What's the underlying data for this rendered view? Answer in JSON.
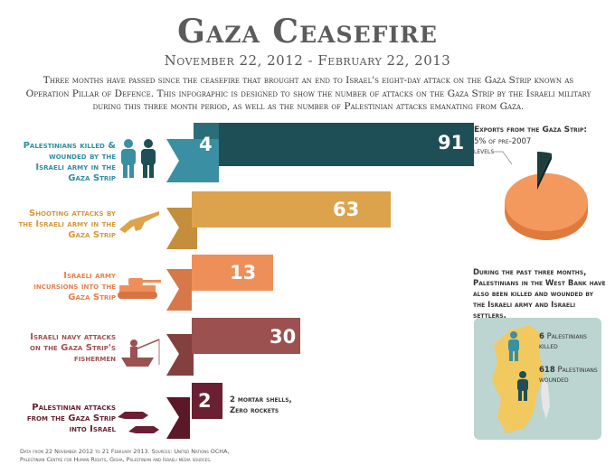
{
  "header": {
    "title": "Gaza Ceasefire",
    "dates": "November 22, 2012 - February 22, 2013",
    "intro": "Three months have passed since the ceasefire that brought an end to Israel's eight-day attack on the Gaza Strip known as Operation Pillar of Defence. This infographic is designed to show the number of attacks on the Gaza Strip by the Israeli military during this three month period, as well as the number of Palestinian attacks emanating from Gaza."
  },
  "rows": [
    {
      "label": "Palestinians killed & wounded by the Israeli army in the Gaza Strip",
      "values": [
        "4",
        "91"
      ],
      "color": "#3a8fa3",
      "dark": "#1e4f56",
      "icon": "people-icon"
    },
    {
      "label": "Shooting attacks by the Israeli army in the Gaza Strip",
      "values": [
        "63"
      ],
      "color": "#dca34c",
      "icon": "rifle-icon"
    },
    {
      "label": "Israeli army incursions into the Gaza Strip",
      "values": [
        "13"
      ],
      "color": "#ee8f5a",
      "icon": "tank-icon"
    },
    {
      "label": "Israeli navy attacks on the Gaza Strip's fishermen",
      "values": [
        "30"
      ],
      "color": "#9b5150",
      "icon": "fishing-boat-icon"
    },
    {
      "label": "Palestinian attacks from the Gaza Strip into Israel",
      "values": [
        "2"
      ],
      "color": "#6a1f32",
      "icon": "rockets-icon"
    }
  ],
  "rocket_note": {
    "line1": "2 mortar shells,",
    "line2": "Zero rockets"
  },
  "exports": {
    "heading": "Exports from the Gaza Strip:",
    "subline1": "5% of pre-2007",
    "subline2": "levels",
    "pie_label": "5%",
    "pie_share": 5,
    "colors": {
      "slice": "#1e3d3e",
      "rest": "#f3995e",
      "rest_dark": "#e07a3c"
    }
  },
  "west_bank": {
    "text": "During the past three months, Palestinians in the West Bank have also been killed and wounded by the Israeli army and Israeli settlers.",
    "killed": "6",
    "killed_label_1": "Palestinians",
    "killed_label_2": "killed",
    "wounded": "618",
    "wounded_label_1": "Palestinians",
    "wounded_label_2": "wounded",
    "map_color": "#f2c95e",
    "bg_color": "#bcd5d0"
  },
  "footer": {
    "line1": "Data from 22 November 2012 to 21 February 2013. Sources: United Nations OCHA,",
    "line2": "Palestinian Centre for Human Rights, Gisha, Palestinian and Israeli media sources."
  }
}
